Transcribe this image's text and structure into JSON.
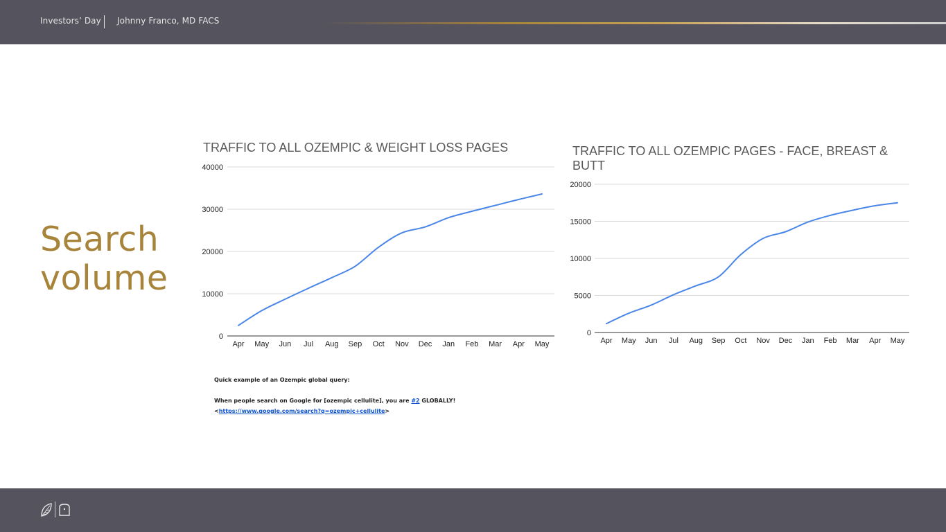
{
  "header": {
    "event": "Investors’ Day",
    "presenter": "Johnny Franco, MD FACS"
  },
  "slide": {
    "title_line1": "Search",
    "title_line2": "volume"
  },
  "colors": {
    "bar_bg": "#55535d",
    "gold": "#a8843b",
    "line": "#4a86e8",
    "grid": "#d9d9d9"
  },
  "chart_data": [
    {
      "type": "line",
      "title": "TRAFFIC TO ALL OZEMPIC & WEIGHT LOSS PAGES",
      "x": [
        "Apr",
        "May",
        "Jun",
        "Jul",
        "Aug",
        "Sep",
        "Oct",
        "Nov",
        "Dec",
        "Jan",
        "Feb",
        "Mar",
        "Apr",
        "May"
      ],
      "yticks": [
        0,
        10000,
        20000,
        30000,
        40000
      ],
      "ylim": [
        0,
        40000
      ],
      "grid": true,
      "series": [
        {
          "values": [
            2500,
            6000,
            8700,
            11300,
            13800,
            16500,
            21000,
            24400,
            25800,
            28000,
            29500,
            30900,
            32300,
            33600
          ]
        }
      ]
    },
    {
      "type": "line",
      "title": "TRAFFIC TO ALL OZEMPIC PAGES - FACE, BREAST & BUTT",
      "x": [
        "Apr",
        "May",
        "Jun",
        "Jul",
        "Aug",
        "Sep",
        "Oct",
        "Nov",
        "Dec",
        "Jan",
        "Feb",
        "Mar",
        "Apr",
        "May"
      ],
      "yticks": [
        0,
        5000,
        10000,
        15000,
        20000
      ],
      "ylim": [
        0,
        20000
      ],
      "grid": true,
      "series": [
        {
          "values": [
            1200,
            2600,
            3700,
            5100,
            6300,
            7500,
            10500,
            12700,
            13600,
            14900,
            15800,
            16500,
            17100,
            17500
          ]
        }
      ]
    }
  ],
  "note": {
    "intro": "Quick example of an Ozempic global query:",
    "line1_before": "When people search on Google for [ozempic cellulite], you are ",
    "line1_link": "#2",
    "line1_after": " GLOBALLY!",
    "url_open": "<",
    "url": "https://www.google.com/search?q=ozempic+cellulite",
    "url_close": ">"
  },
  "footer": {
    "logo1_icon": "leaf-logo-icon",
    "logo2_icon": "emblem-logo-icon"
  }
}
